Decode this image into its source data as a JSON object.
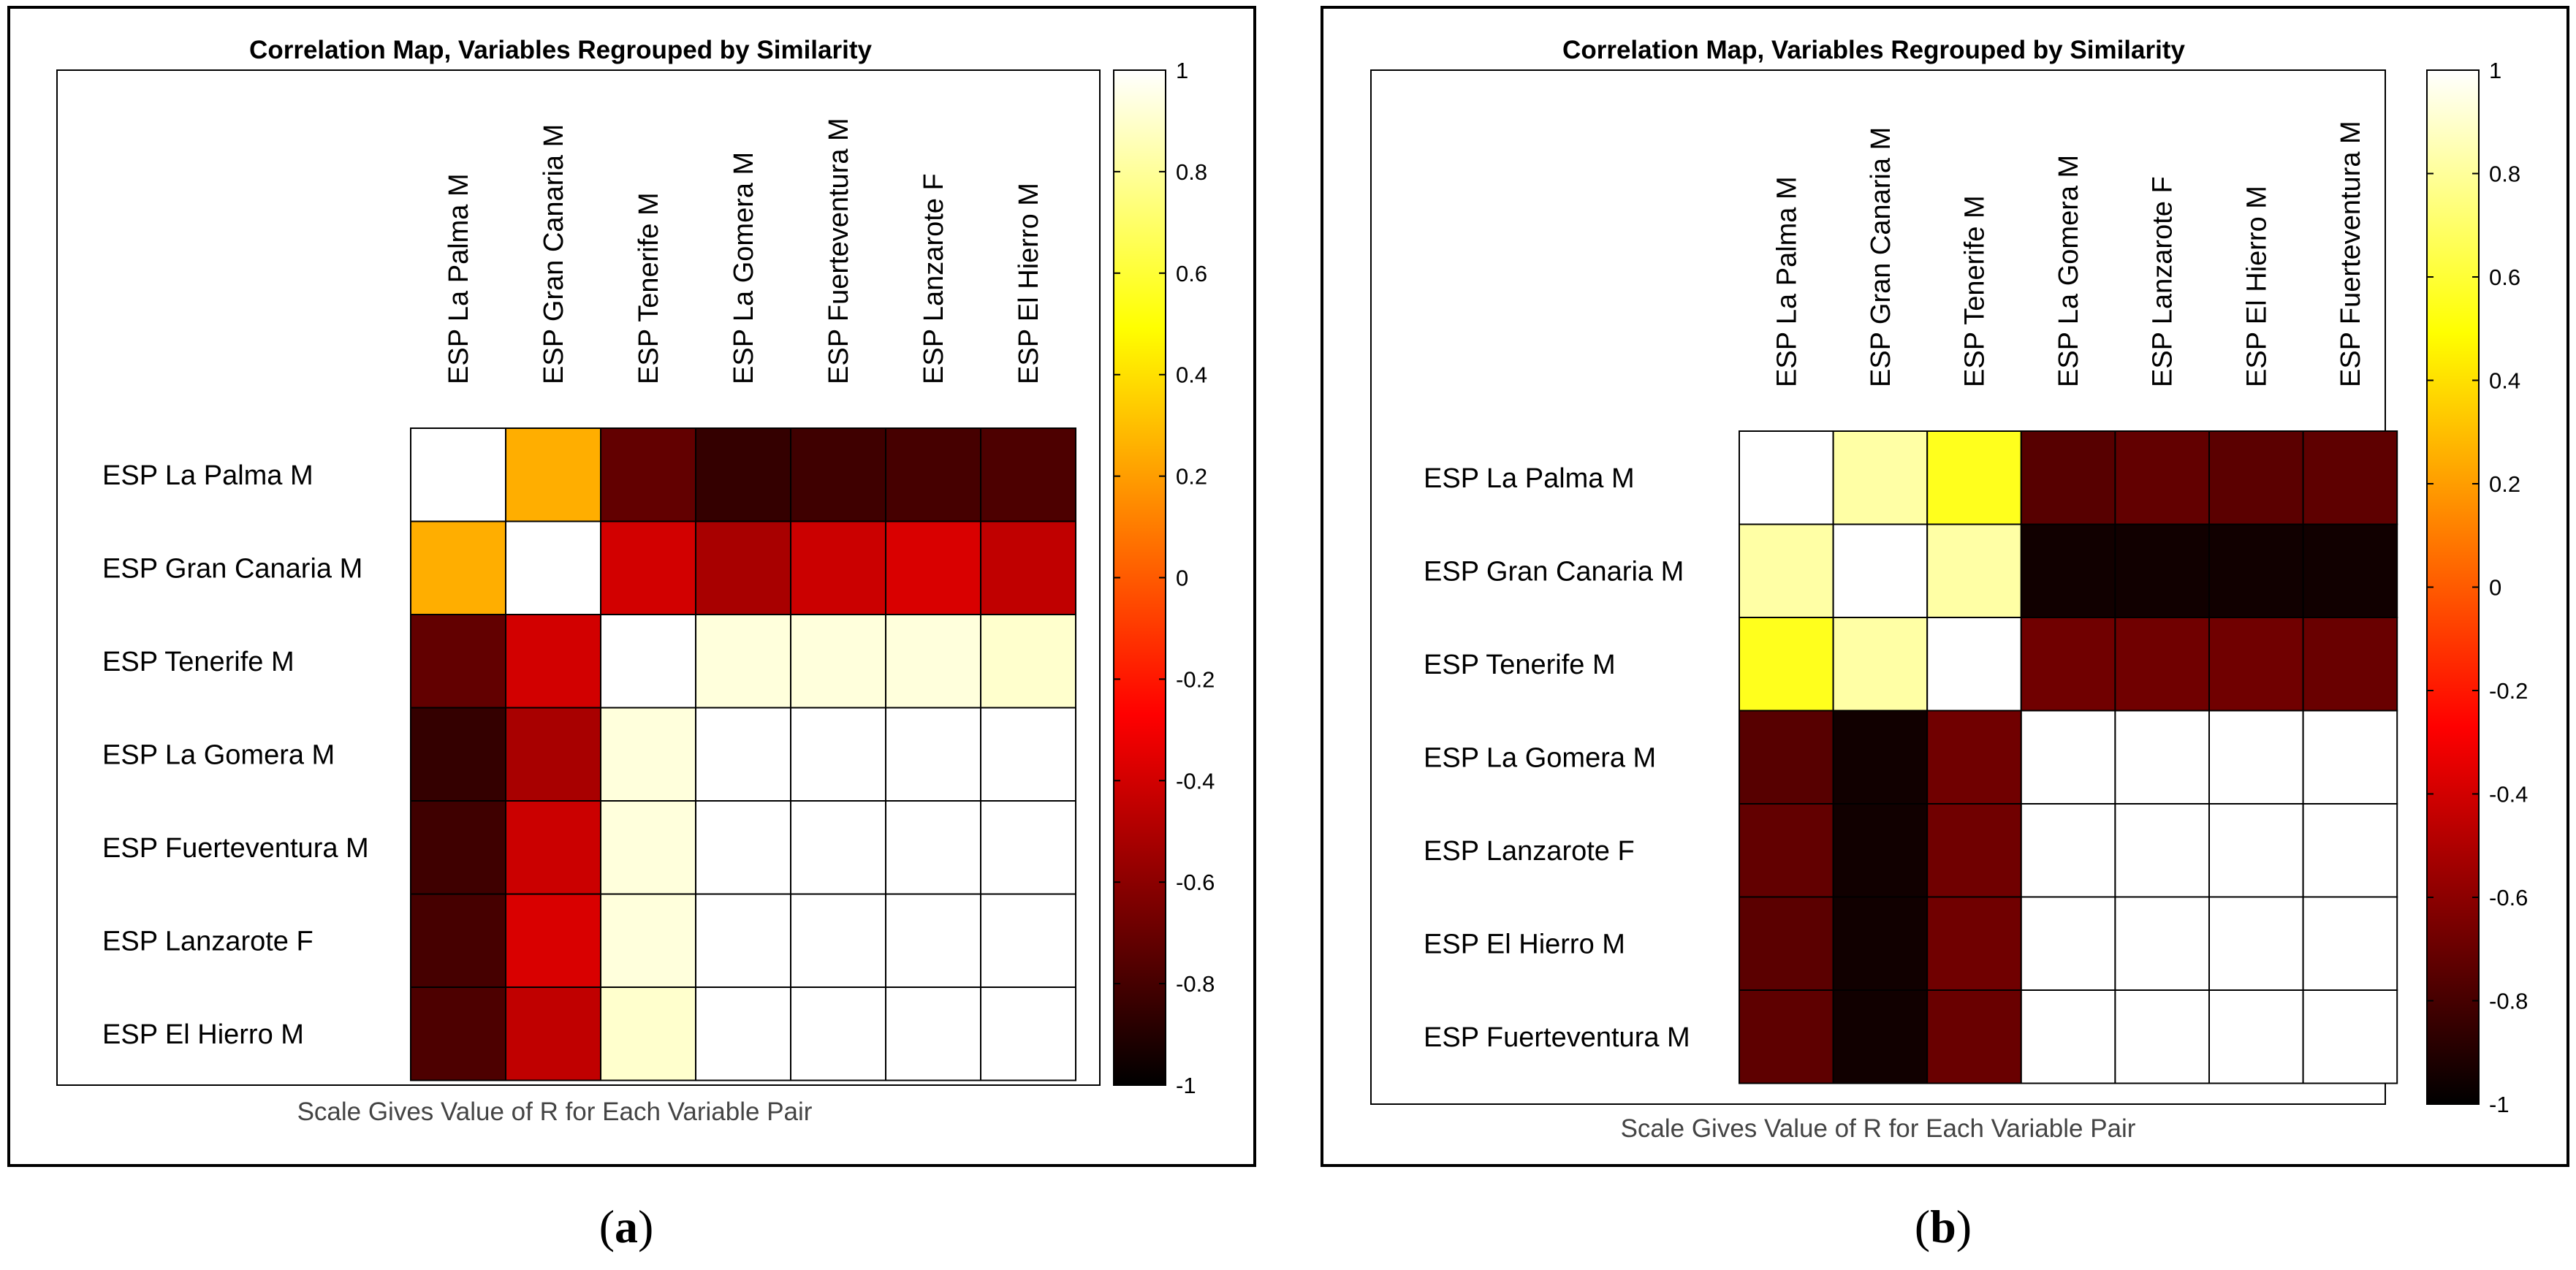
{
  "chart_data": [
    {
      "type": "heatmap",
      "panel": "a",
      "title": "Correlation Map, Variables Regrouped by Similarity",
      "xlabel": "Scale Gives Value of R for Each Variable Pair",
      "labels": [
        "ESP La Palma M",
        "ESP Gran Canaria M",
        "ESP Tenerife M",
        "ESP La Gomera M",
        "ESP Fuerteventura M",
        "ESP Lanzarote F",
        "ESP El Hierro M"
      ],
      "matrix": [
        [
          1.0,
          0.25,
          -0.72,
          -0.85,
          -0.82,
          -0.8,
          -0.78
        ],
        [
          0.25,
          1.0,
          -0.4,
          -0.52,
          -0.42,
          -0.38,
          -0.45
        ],
        [
          -0.72,
          -0.4,
          1.0,
          0.93,
          0.93,
          0.93,
          0.9
        ],
        [
          -0.85,
          -0.52,
          0.93,
          1.0,
          1.0,
          1.0,
          1.0
        ],
        [
          -0.82,
          -0.42,
          0.93,
          1.0,
          1.0,
          1.0,
          1.0
        ],
        [
          -0.8,
          -0.38,
          0.93,
          1.0,
          1.0,
          1.0,
          1.0
        ],
        [
          -0.78,
          -0.45,
          0.9,
          1.0,
          1.0,
          1.0,
          1.0
        ]
      ],
      "colorbar": {
        "range": [
          -1,
          1
        ],
        "ticks": [
          1,
          0.8,
          0.6,
          0.4,
          0.2,
          0,
          -0.2,
          -0.4,
          -0.6,
          -0.8,
          -1
        ],
        "colormap": "hot"
      },
      "caption": "a"
    },
    {
      "type": "heatmap",
      "panel": "b",
      "title": "Correlation Map, Variables Regrouped by Similarity",
      "xlabel": "Scale Gives Value of R for Each Variable Pair",
      "labels": [
        "ESP La Palma M",
        "ESP Gran Canaria M",
        "ESP Tenerife M",
        "ESP La Gomera M",
        "ESP Lanzarote F",
        "ESP El Hierro M",
        "ESP Fuerteventura M"
      ],
      "matrix": [
        [
          1.0,
          0.82,
          0.55,
          -0.75,
          -0.72,
          -0.74,
          -0.73
        ],
        [
          0.82,
          1.0,
          0.82,
          -0.95,
          -0.95,
          -0.95,
          -0.95
        ],
        [
          0.55,
          0.82,
          1.0,
          -0.68,
          -0.68,
          -0.68,
          -0.7
        ],
        [
          -0.75,
          -0.95,
          -0.68,
          1.0,
          1.0,
          1.0,
          1.0
        ],
        [
          -0.72,
          -0.95,
          -0.68,
          1.0,
          1.0,
          1.0,
          1.0
        ],
        [
          -0.74,
          -0.95,
          -0.68,
          1.0,
          1.0,
          1.0,
          1.0
        ],
        [
          -0.73,
          -0.95,
          -0.7,
          1.0,
          1.0,
          1.0,
          1.0
        ]
      ],
      "colorbar": {
        "range": [
          -1,
          1
        ],
        "ticks": [
          1,
          0.8,
          0.6,
          0.4,
          0.2,
          0,
          -0.2,
          -0.4,
          -0.6,
          -0.8,
          -1
        ],
        "colormap": "hot"
      },
      "caption": "b"
    }
  ]
}
